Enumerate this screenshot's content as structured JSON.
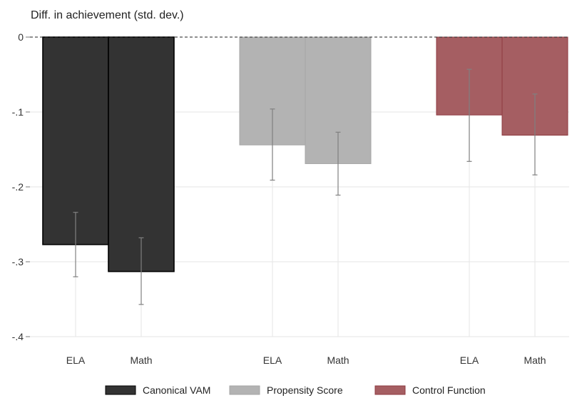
{
  "chart_data": {
    "type": "bar",
    "ylabel": "Diff. in achievement (std. dev.)",
    "ylim": [
      -0.4,
      0
    ],
    "yticks": [
      0,
      -0.1,
      -0.2,
      -0.3,
      -0.4
    ],
    "ytick_labels": [
      "0",
      "-.1",
      "-.2",
      "-.3",
      "-.4"
    ],
    "grid": true,
    "reference_line": {
      "y": 0,
      "style": "dashed"
    },
    "categories": [
      "ELA",
      "Math"
    ],
    "legend_position": "bottom",
    "series": [
      {
        "name": "Canonical VAM",
        "color": "#333333",
        "values": [
          -0.277,
          -0.313
        ],
        "ci_low": [
          -0.32,
          -0.357
        ],
        "ci_high": [
          -0.234,
          -0.268
        ]
      },
      {
        "name": "Propensity Score",
        "color": "#b3b3b3",
        "values": [
          -0.144,
          -0.169
        ],
        "ci_low": [
          -0.191,
          -0.211
        ],
        "ci_high": [
          -0.096,
          -0.127
        ]
      },
      {
        "name": "Control Function",
        "color": "#a55e62",
        "values": [
          -0.104,
          -0.131
        ],
        "ci_low": [
          -0.166,
          -0.184
        ],
        "ci_high": [
          -0.043,
          -0.076
        ]
      }
    ]
  }
}
